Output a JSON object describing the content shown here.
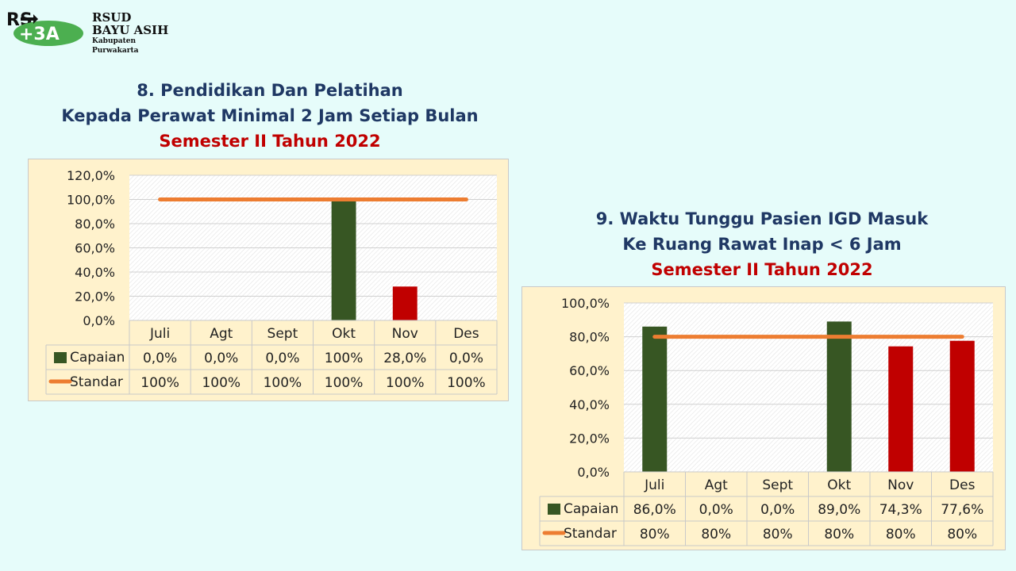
{
  "header": {
    "logo_line1": "RSUD",
    "logo_line2": "BAYU ASIH",
    "logo_line3": "Kabupaten Purwakarta"
  },
  "charts": [
    {
      "title_line1": "8. Pendidikan Dan Pelatihan",
      "title_line2": "Kepada Perawat Minimal 2 Jam Setiap Bulan",
      "subtitle": "Semester II Tahun 2022"
    },
    {
      "title_line1": "9. Waktu Tunggu Pasien IGD Masuk",
      "title_line2": "Ke Ruang Rawat Inap < 6 Jam",
      "subtitle": "Semester II Tahun 2022"
    }
  ],
  "colors": {
    "bar_green": "#375623",
    "bar_red": "#c00000",
    "line_orange": "#ed7d31",
    "panel_bg": "#fff2cc",
    "title_blue": "#1f3864",
    "title_red": "#c00000"
  },
  "chart_data": [
    {
      "type": "bar",
      "categories": [
        "Juli",
        "Agt",
        "Sept",
        "Okt",
        "Nov",
        "Des"
      ],
      "series": [
        {
          "name": "Capaian",
          "values": [
            0,
            0,
            0,
            100,
            28,
            0
          ],
          "labels": [
            "0,0%",
            "0,0%",
            "0,0%",
            "100%",
            "28,0%",
            "0,0%"
          ],
          "bar_colors": [
            "#375623",
            "#375623",
            "#375623",
            "#375623",
            "#c00000",
            "#375623"
          ]
        },
        {
          "name": "Standar",
          "type": "line",
          "values": [
            100,
            100,
            100,
            100,
            100,
            100
          ],
          "labels": [
            "100%",
            "100%",
            "100%",
            "100%",
            "100%",
            "100%"
          ]
        }
      ],
      "yticks": [
        "0,0%",
        "20,0%",
        "40,0%",
        "60,0%",
        "80,0%",
        "100,0%",
        "120,0%"
      ],
      "ylim": [
        0,
        120
      ],
      "legend": "data-table"
    },
    {
      "type": "bar",
      "categories": [
        "Juli",
        "Agt",
        "Sept",
        "Okt",
        "Nov",
        "Des"
      ],
      "series": [
        {
          "name": "Capaian",
          "values": [
            86,
            0,
            0,
            89,
            74.3,
            77.6
          ],
          "labels": [
            "86,0%",
            "0,0%",
            "0,0%",
            "89,0%",
            "74,3%",
            "77,6%"
          ],
          "bar_colors": [
            "#375623",
            "#375623",
            "#375623",
            "#375623",
            "#c00000",
            "#c00000"
          ]
        },
        {
          "name": "Standar",
          "type": "line",
          "values": [
            80,
            80,
            80,
            80,
            80,
            80
          ],
          "labels": [
            "80%",
            "80%",
            "80%",
            "80%",
            "80%",
            "80%"
          ]
        }
      ],
      "yticks": [
        "0,0%",
        "20,0%",
        "40,0%",
        "60,0%",
        "80,0%",
        "100,0%"
      ],
      "ylim": [
        0,
        100
      ],
      "legend": "data-table"
    }
  ]
}
